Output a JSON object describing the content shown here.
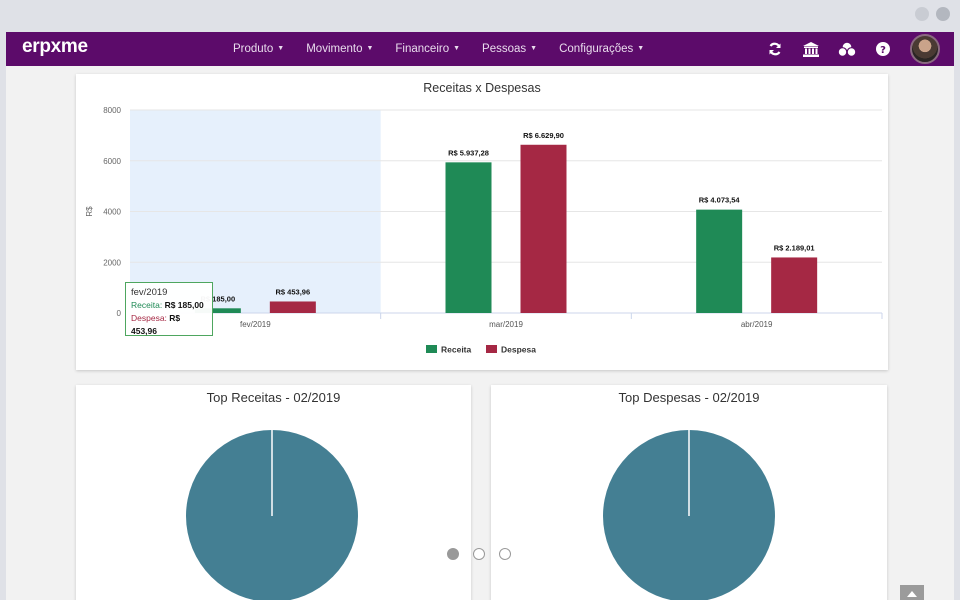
{
  "nav": {
    "logo_text": "erpxme",
    "menu": [
      {
        "label": "Produto",
        "caret": "▼"
      },
      {
        "label": "Movimento",
        "caret": "▼"
      },
      {
        "label": "Financeiro",
        "caret": "▼"
      },
      {
        "label": "Pessoas",
        "caret": "▼"
      },
      {
        "label": "Configurações",
        "caret": "▼"
      }
    ],
    "icons": [
      "refresh-icon",
      "bank-icon",
      "coins-icon",
      "help-icon"
    ],
    "accent_color": "#5c0b6a"
  },
  "bar_chart": {
    "tooltip": {
      "title": "fev/2019",
      "receita_label": "Receita:",
      "receita_value": "R$ 185,00",
      "despesa_label": "Despesa:",
      "despesa_value": "R$ 453,96"
    }
  },
  "chart_data": [
    {
      "type": "bar",
      "title": "Receitas x Despesas",
      "xlabel": "",
      "ylabel": "R$",
      "ylim": [
        0,
        8000
      ],
      "yticks": [
        0,
        2000,
        4000,
        6000,
        8000
      ],
      "ytick_labels": [
        "0",
        "2000",
        "4000",
        "6000",
        "8000"
      ],
      "categories": [
        "fev/2019",
        "mar/2019",
        "abr/2019"
      ],
      "highlighted_category": "fev/2019",
      "series": [
        {
          "name": "Receita",
          "color": "#1f8a56",
          "values": [
            185.0,
            5937.28,
            4073.54
          ],
          "labels": [
            "R$ 185,00",
            "R$ 5.937,28",
            "R$ 4.073,54"
          ]
        },
        {
          "name": "Despesa",
          "color": "#a52844",
          "values": [
            453.96,
            6629.9,
            2189.01
          ],
          "labels": [
            "R$ 453,96",
            "R$ 6.629,90",
            "R$ 2.189,01"
          ]
        }
      ],
      "legend": "bottom-center"
    },
    {
      "type": "pie",
      "title": "Top Receitas - 02/2019",
      "labels": [
        ""
      ],
      "values": [
        100
      ],
      "colors": [
        "#447f93"
      ]
    },
    {
      "type": "pie",
      "title": "Top Despesas - 02/2019",
      "labels": [
        ""
      ],
      "values": [
        100
      ],
      "colors": [
        "#447f93"
      ]
    }
  ],
  "pager": {
    "count": 3,
    "active_index": 0
  }
}
